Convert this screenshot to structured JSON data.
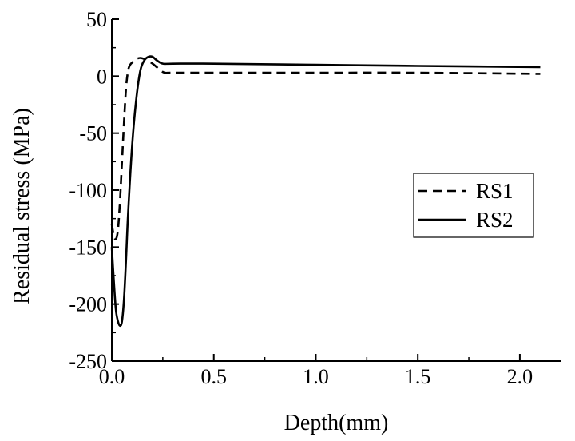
{
  "chart_data": {
    "type": "line",
    "title": "",
    "xlabel": "Depth(mm)",
    "ylabel": "Residual stress (MPa)",
    "xlim": [
      0.0,
      2.2
    ],
    "ylim": [
      -250,
      50
    ],
    "x_ticks": [
      0.0,
      0.5,
      1.0,
      1.5,
      2.0
    ],
    "x_tick_labels": [
      "0.0",
      "0.5",
      "1.0",
      "1.5",
      "2.0"
    ],
    "y_ticks": [
      -250,
      -200,
      -150,
      -100,
      -50,
      0,
      50
    ],
    "y_tick_labels": [
      "-250",
      "-200",
      "-150",
      "-100",
      "-50",
      "0",
      "50"
    ],
    "grid": false,
    "legend": "right",
    "series": [
      {
        "name": "RS1",
        "style": "dashed",
        "color": "#000000",
        "x": [
          0.0,
          0.01,
          0.02,
          0.03,
          0.04,
          0.05,
          0.06,
          0.07,
          0.08,
          0.09,
          0.1,
          0.12,
          0.14,
          0.16,
          0.18,
          0.2,
          0.22,
          0.24,
          0.26,
          0.3,
          0.5,
          1.0,
          1.5,
          2.1
        ],
        "y": [
          -130,
          -140,
          -143,
          -135,
          -110,
          -75,
          -40,
          -10,
          5,
          10,
          12,
          15,
          16,
          15,
          13,
          11,
          8,
          5,
          3,
          3,
          3,
          3,
          3,
          2
        ]
      },
      {
        "name": "RS2",
        "style": "solid",
        "color": "#000000",
        "x": [
          0.0,
          0.01,
          0.02,
          0.03,
          0.04,
          0.05,
          0.06,
          0.07,
          0.08,
          0.1,
          0.12,
          0.14,
          0.16,
          0.18,
          0.2,
          0.22,
          0.25,
          0.3,
          0.5,
          1.0,
          1.5,
          2.1
        ],
        "y": [
          -150,
          -180,
          -205,
          -215,
          -219,
          -215,
          -195,
          -160,
          -120,
          -60,
          -20,
          5,
          14,
          17,
          17,
          14,
          11,
          11,
          11,
          10,
          9,
          8
        ]
      }
    ]
  }
}
